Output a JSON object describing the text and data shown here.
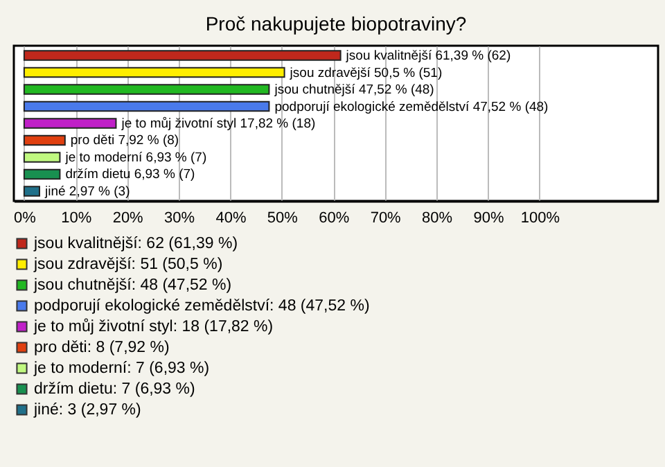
{
  "chart_data": {
    "type": "bar",
    "orientation": "horizontal",
    "title": "Proč nakupujete biopotraviny?",
    "categories": [
      null,
      null,
      null,
      null,
      null,
      null,
      null,
      null,
      null
    ],
    "series": [
      {
        "name": "jsou kvalitnější: 62 (61,39 %)",
        "color": "#c0281c",
        "values": [
          61.39,
          null,
          null,
          null,
          null,
          null,
          null,
          null,
          null
        ],
        "value_labels": [
          "jsou kvalitnější 61,39 % (62)",
          null,
          null,
          null,
          null,
          null,
          null,
          null,
          null
        ]
      },
      {
        "name": "jsou zdravější: 51 (50,5 %)",
        "color": "#ffee00",
        "values": [
          null,
          50.5,
          null,
          null,
          null,
          null,
          null,
          null,
          null
        ],
        "value_labels": [
          null,
          "jsou zdravější 50,5 % (51)",
          null,
          null,
          null,
          null,
          null,
          null,
          null
        ]
      },
      {
        "name": "jsou chutnější: 48 (47,52 %)",
        "color": "#22b822",
        "values": [
          null,
          null,
          47.52,
          null,
          null,
          null,
          null,
          null,
          null
        ],
        "value_labels": [
          null,
          null,
          "jsou chutnější 47,52 % (48)",
          null,
          null,
          null,
          null,
          null,
          null
        ]
      },
      {
        "name": "podporují ekologické zemědělství: 48 (47,52 %)",
        "color": "#4a7aeb",
        "values": [
          null,
          null,
          null,
          47.52,
          null,
          null,
          null,
          null,
          null
        ],
        "value_labels": [
          null,
          null,
          null,
          "podporují ekologické zemědělství 47,52 % (48)",
          null,
          null,
          null,
          null,
          null
        ]
      },
      {
        "name": "je to můj životní styl: 18 (17,82 %)",
        "color": "#c020c8",
        "values": [
          null,
          null,
          null,
          null,
          17.82,
          null,
          null,
          null,
          null
        ],
        "value_labels": [
          null,
          null,
          null,
          null,
          "je to můj životní styl 17,82 % (18)",
          null,
          null,
          null,
          null
        ]
      },
      {
        "name": "pro děti: 8 (7,92 %)",
        "color": "#e04010",
        "values": [
          null,
          null,
          null,
          null,
          null,
          7.92,
          null,
          null,
          null
        ],
        "value_labels": [
          null,
          null,
          null,
          null,
          null,
          "pro děti 7,92 % (8)",
          null,
          null,
          null
        ]
      },
      {
        "name": "je to moderní: 7 (6,93 %)",
        "color": "#c0f880",
        "values": [
          null,
          null,
          null,
          null,
          null,
          null,
          6.93,
          null,
          null
        ],
        "value_labels": [
          null,
          null,
          null,
          null,
          null,
          null,
          "je to moderní 6,93 % (7)",
          null,
          null
        ]
      },
      {
        "name": "držím dietu: 7 (6,93 %)",
        "color": "#189050",
        "values": [
          null,
          null,
          null,
          null,
          null,
          null,
          null,
          6.93,
          null
        ],
        "value_labels": [
          null,
          null,
          null,
          null,
          null,
          null,
          null,
          "držím dietu 6,93 % (7)",
          null
        ]
      },
      {
        "name": "jiné: 3 (2,97 %)",
        "color": "#20708a",
        "values": [
          null,
          null,
          null,
          null,
          null,
          null,
          null,
          null,
          2.97
        ],
        "value_labels": [
          null,
          null,
          null,
          null,
          null,
          null,
          null,
          null,
          "jiné 2,97 % (3)"
        ]
      }
    ],
    "xlim": [
      -2,
      123
    ],
    "xticks": [
      {
        "value": 0,
        "label": "0%"
      },
      {
        "value": 10,
        "label": "10%"
      },
      {
        "value": 20,
        "label": "20%"
      },
      {
        "value": 30,
        "label": "30%"
      },
      {
        "value": 40,
        "label": "40%"
      },
      {
        "value": 50,
        "label": "50%"
      },
      {
        "value": 60,
        "label": "60%"
      },
      {
        "value": 70,
        "label": "70%"
      },
      {
        "value": 80,
        "label": "80%"
      },
      {
        "value": 90,
        "label": "90%"
      },
      {
        "value": 100,
        "label": "100%"
      }
    ],
    "grid": "x",
    "legend": "bottom",
    "tick_labels": "x"
  }
}
